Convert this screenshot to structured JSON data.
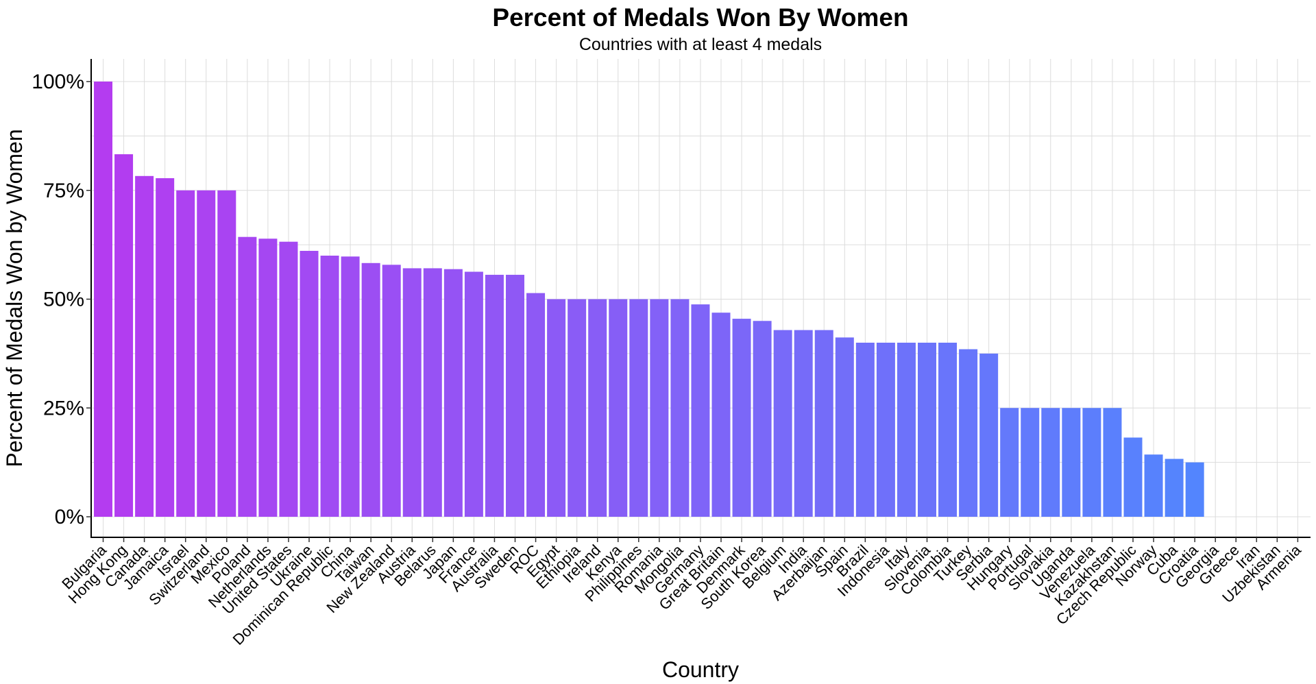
{
  "chart_data": {
    "type": "bar",
    "title": "Percent of Medals Won By Women",
    "subtitle": "Countries with at least 4 medals",
    "xlabel": "Country",
    "ylabel": "Percent of Medals Won by Women",
    "ylim": [
      0,
      105
    ],
    "yticks": [
      0,
      25,
      50,
      75,
      100
    ],
    "ytick_labels": [
      "0%",
      "25%",
      "50%",
      "75%",
      "100%"
    ],
    "grid": true,
    "legend": "none",
    "gradient": {
      "start": "#B43CF0",
      "end": "#4A8CFF"
    },
    "categories": [
      "Bulgaria",
      "Hong Kong",
      "Canada",
      "Jamaica",
      "Israel",
      "Switzerland",
      "Mexico",
      "Poland",
      "Netherlands",
      "United States",
      "Ukraine",
      "Dominican Republic",
      "China",
      "Taiwan",
      "New Zealand",
      "Austria",
      "Belarus",
      "Japan",
      "France",
      "Australia",
      "Sweden",
      "ROC",
      "Egypt",
      "Ethiopia",
      "Ireland",
      "Kenya",
      "Philippines",
      "Romania",
      "Mongolia",
      "Germany",
      "Great Britain",
      "Denmark",
      "South Korea",
      "Belgium",
      "India",
      "Azerbaijan",
      "Spain",
      "Brazil",
      "Indonesia",
      "Italy",
      "Slovenia",
      "Colombia",
      "Turkey",
      "Serbia",
      "Hungary",
      "Portugal",
      "Slovakia",
      "Uganda",
      "Venezuela",
      "Kazakhstan",
      "Czech Republic",
      "Norway",
      "Cuba",
      "Croatia",
      "Georgia",
      "Greece",
      "Iran",
      "Uzbekistan",
      "Armenia"
    ],
    "values": [
      100,
      83.3,
      78.3,
      77.8,
      75,
      75,
      75,
      64.3,
      63.9,
      63.2,
      61.1,
      60,
      59.8,
      58.3,
      57.9,
      57.1,
      57.1,
      56.9,
      56.3,
      55.6,
      55.6,
      51.4,
      50,
      50,
      50,
      50,
      50,
      50,
      50,
      48.8,
      46.9,
      45.5,
      45,
      42.9,
      42.9,
      42.9,
      41.2,
      40,
      40,
      40,
      40,
      40,
      38.5,
      37.5,
      25,
      25,
      25,
      25,
      25,
      25,
      18.2,
      14.3,
      13.3,
      12.5,
      0,
      0,
      0,
      0,
      0
    ]
  }
}
